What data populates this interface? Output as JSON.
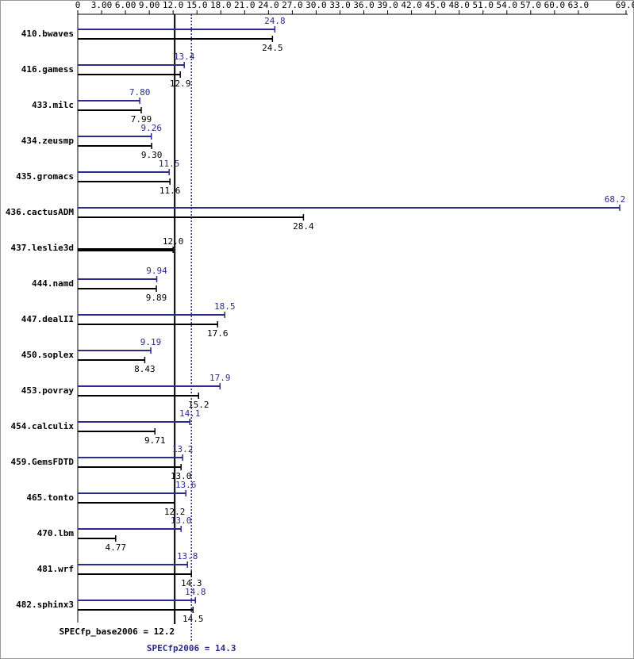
{
  "chart_data": {
    "type": "bar",
    "categories": [
      "410.bwaves",
      "416.gamess",
      "433.milc",
      "434.zeusmp",
      "435.gromacs",
      "436.cactusADM",
      "437.leslie3d",
      "444.namd",
      "447.dealII",
      "450.soplex",
      "453.povray",
      "454.calculix",
      "459.GemsFDTD",
      "465.tonto",
      "470.lbm",
      "481.wrf",
      "482.sphinx3"
    ],
    "series": [
      {
        "name": "peak",
        "color": "#2b2b8c",
        "values": [
          24.8,
          13.4,
          7.8,
          9.26,
          11.5,
          68.2,
          null,
          9.94,
          18.5,
          9.19,
          17.9,
          14.1,
          13.2,
          13.6,
          13.0,
          13.8,
          14.8
        ],
        "value_labels": [
          "24.8",
          "13.4",
          "7.80",
          "9.26",
          "11.5",
          "68.2",
          null,
          "9.94",
          "18.5",
          "9.19",
          "17.9",
          "14.1",
          "13.2",
          "13.6",
          "13.0",
          "13.8",
          "14.8"
        ]
      },
      {
        "name": "base",
        "color": "#000000",
        "values": [
          24.5,
          12.9,
          7.99,
          9.3,
          11.6,
          28.4,
          12.0,
          9.89,
          17.6,
          8.43,
          15.2,
          9.71,
          13.0,
          12.2,
          4.77,
          14.3,
          14.5
        ],
        "value_labels": [
          "24.5",
          "12.9",
          "7.99",
          "9.30",
          "11.6",
          "28.4",
          "12.0",
          "9.89",
          "17.6",
          "8.43",
          "15.2",
          "9.71",
          "13.0",
          "12.2",
          "4.77",
          "14.3",
          "14.5"
        ]
      }
    ],
    "xlim": [
      0,
      69
    ],
    "xticks": [
      0,
      {
        "value": 3,
        "label": "3.00"
      },
      {
        "value": 6,
        "label": "6.00"
      },
      {
        "value": 9,
        "label": "9.00"
      },
      {
        "value": 12,
        "label": "12.0"
      },
      {
        "value": 15,
        "label": "15.0"
      },
      {
        "value": 18,
        "label": "18.0"
      },
      {
        "value": 21,
        "label": "21.0"
      },
      {
        "value": 24,
        "label": "24.0"
      },
      {
        "value": 27,
        "label": "27.0"
      },
      {
        "value": 30,
        "label": "30.0"
      },
      {
        "value": 33,
        "label": "33.0"
      },
      {
        "value": 36,
        "label": "36.0"
      },
      {
        "value": 39,
        "label": "39.0"
      },
      {
        "value": 42,
        "label": "42.0"
      },
      {
        "value": 45,
        "label": "45.0"
      },
      {
        "value": 48,
        "label": "48.0"
      },
      {
        "value": 51,
        "label": "51.0"
      },
      {
        "value": 54,
        "label": "54.0"
      },
      {
        "value": 57,
        "label": "57.0"
      },
      {
        "value": 60,
        "label": "60.0"
      },
      {
        "value": 63,
        "label": "63.0"
      },
      {
        "value": 69,
        "label": "69.0"
      }
    ],
    "reference_lines": [
      {
        "label": "SPECfp_base2006 = 12.2",
        "value": 12.2,
        "color": "#000000",
        "style": "solid"
      },
      {
        "label": "SPECfp2006 = 14.3",
        "value": 14.3,
        "color": "#2b2b8c",
        "style": "dotted"
      }
    ]
  }
}
